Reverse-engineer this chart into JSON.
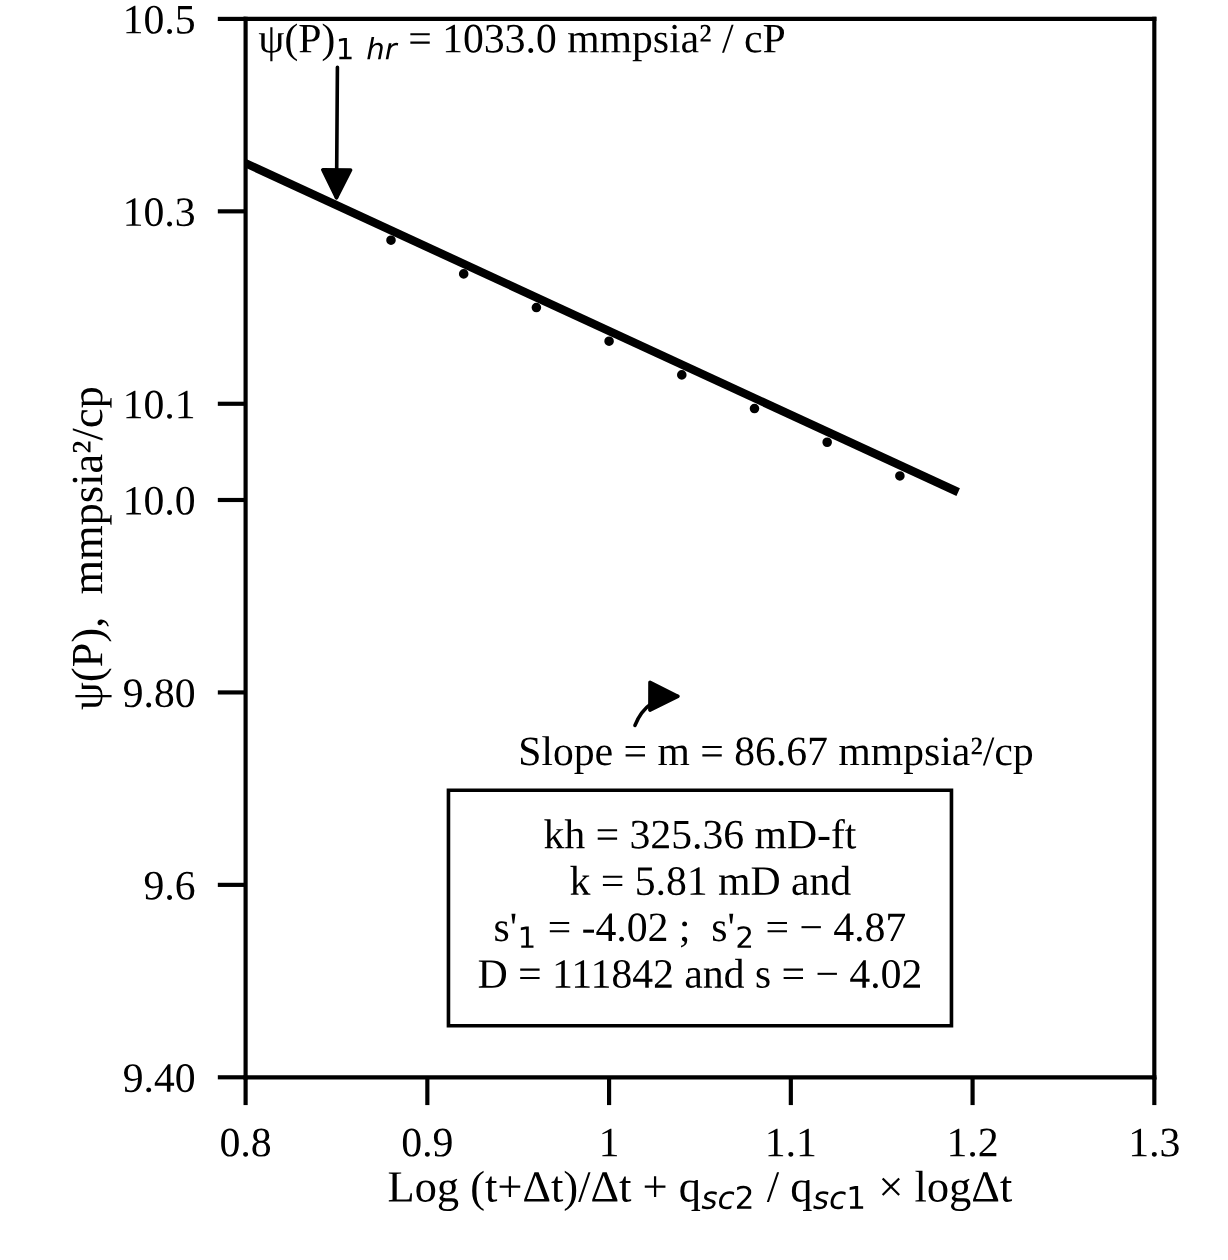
{
  "chart_data": {
    "type": "line",
    "xlabel": "Log (t+Δt)/Δt + q$_{sc2}$ / q$_{sc1}$ × logΔt",
    "ylabel": "ψ(P),  mmpsia²/cp",
    "xlim": [
      0.8,
      1.3
    ],
    "xticks": [
      0.8,
      0.9,
      {
        "value": 1.0,
        "label": "1"
      },
      1.1,
      1.2,
      1.3
    ],
    "ylim": [
      9.4,
      10.5
    ],
    "yticks": [
      {
        "value": 9.4,
        "label": "9.40"
      },
      9.6,
      {
        "value": 9.8,
        "label": "9.80"
      },
      {
        "value": 10.0,
        "label": "10.0"
      },
      10.1,
      10.3,
      10.5
    ],
    "grid": false,
    "series": [
      {
        "color": "#000000",
        "line_style": "solid",
        "marker": "none",
        "x": [
          0.8,
          1.19
        ],
        "values": [
          10.35,
          10.01
        ]
      },
      {
        "type": "scatter",
        "color": "#000000",
        "marker": "circle",
        "x": [
          0.88,
          0.92,
          0.96,
          1.0,
          1.04,
          1.08,
          1.12,
          1.16
        ],
        "values": [
          10.27,
          10.235,
          10.2,
          10.165,
          10.13,
          10.095,
          10.06,
          10.025
        ]
      }
    ],
    "annotations": [
      {
        "text": "ψ(P)$_{1}$ $_{hr}$ = 1033.0 mmpsia² / cP",
        "x": 0.85,
        "y": 10.31
      },
      "Slope = m = 86.67 mmpsia²/cp",
      "kh = 325.36 mD-ft\n  k = 5.81 mD and\ns'$_{1}$ = -4.02 ;  s'$_{2}$ = − 4.87\nD = 111842 and s = − 4.02"
    ]
  }
}
